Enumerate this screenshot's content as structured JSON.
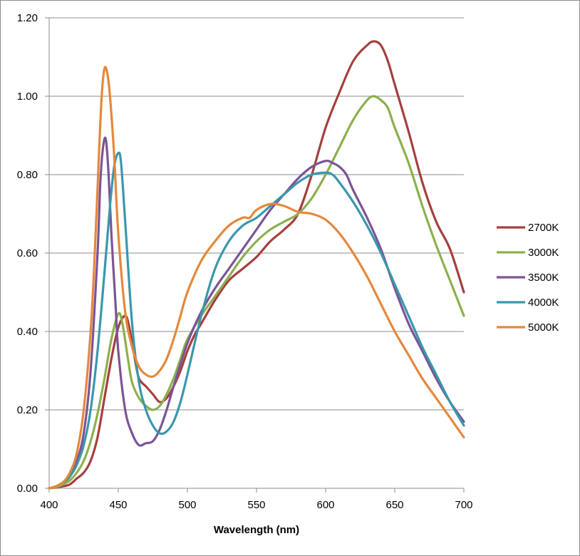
{
  "chart_data": {
    "type": "line",
    "title": "",
    "xlabel": "Wavelength (nm)",
    "ylabel": "",
    "xlim": [
      400,
      700
    ],
    "ylim": [
      0,
      1.2
    ],
    "x_ticks": [
      "400",
      "450",
      "500",
      "550",
      "600",
      "650",
      "700"
    ],
    "y_ticks": [
      "0.00",
      "0.20",
      "0.40",
      "0.60",
      "0.80",
      "1.00",
      "1.20"
    ],
    "grid": "horizontal",
    "legend_position": "right",
    "series": [
      {
        "name": "2700K",
        "color": "#A5403E",
        "x": [
          400,
          405,
          410,
          415,
          420,
          425,
          430,
          435,
          440,
          445,
          450,
          455,
          458,
          462,
          465,
          470,
          475,
          480,
          485,
          490,
          495,
          500,
          505,
          510,
          520,
          530,
          540,
          550,
          560,
          570,
          580,
          590,
          600,
          610,
          620,
          630,
          635,
          640,
          645,
          650,
          660,
          670,
          680,
          690,
          700
        ],
        "y": [
          0.0,
          0.002,
          0.005,
          0.01,
          0.025,
          0.04,
          0.07,
          0.13,
          0.23,
          0.33,
          0.41,
          0.44,
          0.41,
          0.33,
          0.28,
          0.26,
          0.24,
          0.22,
          0.23,
          0.26,
          0.3,
          0.35,
          0.39,
          0.42,
          0.48,
          0.53,
          0.56,
          0.59,
          0.63,
          0.66,
          0.7,
          0.8,
          0.92,
          1.01,
          1.09,
          1.13,
          1.14,
          1.13,
          1.09,
          1.03,
          0.91,
          0.78,
          0.68,
          0.61,
          0.5
        ]
      },
      {
        "name": "3000K",
        "color": "#8CB04C",
        "x": [
          400,
          405,
          410,
          415,
          420,
          425,
          430,
          435,
          440,
          445,
          450,
          453,
          457,
          460,
          465,
          470,
          475,
          480,
          485,
          490,
          495,
          500,
          510,
          520,
          530,
          540,
          550,
          560,
          570,
          580,
          590,
          600,
          610,
          620,
          630,
          635,
          640,
          645,
          650,
          660,
          670,
          680,
          690,
          700
        ],
        "y": [
          0.0,
          0.003,
          0.01,
          0.02,
          0.04,
          0.07,
          0.12,
          0.19,
          0.28,
          0.38,
          0.445,
          0.42,
          0.33,
          0.27,
          0.23,
          0.21,
          0.2,
          0.21,
          0.24,
          0.28,
          0.33,
          0.38,
          0.44,
          0.49,
          0.54,
          0.59,
          0.63,
          0.66,
          0.68,
          0.7,
          0.74,
          0.8,
          0.87,
          0.94,
          0.99,
          1.0,
          0.99,
          0.97,
          0.92,
          0.83,
          0.72,
          0.62,
          0.53,
          0.44
        ]
      },
      {
        "name": "3500K",
        "color": "#7B5496",
        "x": [
          400,
          405,
          410,
          415,
          420,
          425,
          430,
          435,
          437,
          439,
          441,
          443,
          445,
          448,
          450,
          455,
          460,
          465,
          470,
          475,
          480,
          485,
          490,
          500,
          510,
          520,
          530,
          540,
          550,
          560,
          570,
          580,
          590,
          600,
          605,
          610,
          615,
          620,
          630,
          640,
          650,
          660,
          670,
          680,
          690,
          700
        ],
        "y": [
          0.0,
          0.005,
          0.015,
          0.03,
          0.07,
          0.14,
          0.3,
          0.6,
          0.78,
          0.87,
          0.89,
          0.8,
          0.65,
          0.47,
          0.35,
          0.2,
          0.14,
          0.11,
          0.115,
          0.12,
          0.15,
          0.2,
          0.26,
          0.37,
          0.45,
          0.51,
          0.56,
          0.61,
          0.66,
          0.71,
          0.75,
          0.79,
          0.82,
          0.835,
          0.83,
          0.82,
          0.8,
          0.76,
          0.69,
          0.61,
          0.51,
          0.42,
          0.35,
          0.28,
          0.22,
          0.17
        ]
      },
      {
        "name": "4000K",
        "color": "#3A97AD",
        "x": [
          400,
          405,
          410,
          415,
          420,
          425,
          430,
          435,
          440,
          444,
          447,
          450,
          452,
          455,
          460,
          465,
          470,
          475,
          480,
          485,
          490,
          495,
          500,
          510,
          520,
          530,
          540,
          550,
          560,
          570,
          580,
          590,
          600,
          605,
          610,
          620,
          630,
          640,
          650,
          660,
          670,
          680,
          690,
          700
        ],
        "y": [
          0.0,
          0.005,
          0.015,
          0.03,
          0.06,
          0.11,
          0.2,
          0.35,
          0.55,
          0.72,
          0.82,
          0.855,
          0.83,
          0.68,
          0.42,
          0.27,
          0.2,
          0.16,
          0.14,
          0.145,
          0.17,
          0.22,
          0.29,
          0.44,
          0.56,
          0.63,
          0.67,
          0.69,
          0.72,
          0.75,
          0.78,
          0.8,
          0.805,
          0.8,
          0.78,
          0.73,
          0.67,
          0.6,
          0.52,
          0.44,
          0.36,
          0.29,
          0.22,
          0.16
        ]
      },
      {
        "name": "5000K",
        "color": "#E5883B",
        "x": [
          400,
          405,
          410,
          415,
          420,
          425,
          430,
          433,
          436,
          438,
          440,
          442,
          444,
          447,
          450,
          455,
          460,
          465,
          470,
          475,
          480,
          485,
          490,
          495,
          500,
          510,
          520,
          530,
          540,
          545,
          550,
          560,
          570,
          580,
          590,
          600,
          610,
          620,
          630,
          640,
          650,
          660,
          670,
          680,
          690,
          700
        ],
        "y": [
          0.0,
          0.005,
          0.015,
          0.04,
          0.09,
          0.2,
          0.4,
          0.6,
          0.85,
          1.0,
          1.07,
          1.06,
          1.0,
          0.85,
          0.65,
          0.45,
          0.36,
          0.31,
          0.29,
          0.285,
          0.3,
          0.33,
          0.38,
          0.44,
          0.5,
          0.58,
          0.63,
          0.67,
          0.69,
          0.69,
          0.71,
          0.725,
          0.72,
          0.705,
          0.7,
          0.685,
          0.65,
          0.6,
          0.54,
          0.47,
          0.4,
          0.34,
          0.28,
          0.23,
          0.18,
          0.13
        ]
      }
    ]
  }
}
